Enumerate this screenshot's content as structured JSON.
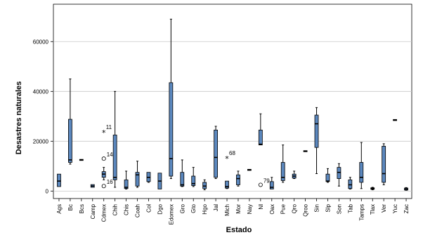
{
  "chart_data": {
    "type": "boxplot",
    "xlabel": "Estado",
    "ylabel": "Desastres naturales",
    "ylim": [
      -3000,
      75000
    ],
    "yticks": [
      0,
      20000,
      40000,
      60000
    ],
    "ytick_labels": [
      "0",
      "20000",
      "40000",
      "60000"
    ],
    "grid": "horizontal",
    "box_color": "#5b87bd",
    "categories": [
      "Ags",
      "Bc",
      "Bcs",
      "Camp",
      "Cdmex",
      "Chih",
      "Chis",
      "Coah",
      "Col",
      "Dgo",
      "Edomex",
      "Gro",
      "Gto",
      "Hgo",
      "Jal",
      "Mich",
      "Mor",
      "Nay",
      "Nl",
      "Oax",
      "Pue",
      "Qro",
      "Qroo",
      "Sin",
      "Slp",
      "Son",
      "Tab",
      "Tamps",
      "Tlax",
      "Ver",
      "Yuc",
      "Zac"
    ],
    "boxes": [
      {
        "category": "Ags",
        "min": 1800,
        "q1": 1800,
        "median": 4000,
        "q3": 6800,
        "max": 6800
      },
      {
        "category": "Bc",
        "min": 10800,
        "q1": 11500,
        "median": 12500,
        "q3": 28800,
        "max": 45000
      },
      {
        "category": "Bcs",
        "min": 12500,
        "q1": 12500,
        "median": 12500,
        "q3": 12500,
        "max": 12500
      },
      {
        "category": "Camp",
        "min": 1500,
        "q1": 1500,
        "median": 2000,
        "q3": 2600,
        "max": 2600
      },
      {
        "category": "Cdmex",
        "min": 4500,
        "q1": 5500,
        "median": 6800,
        "q3": 7800,
        "max": 9500
      },
      {
        "category": "Chih",
        "min": 1500,
        "q1": 4500,
        "median": 5500,
        "q3": 22500,
        "max": 40000
      },
      {
        "category": "Chis",
        "min": 800,
        "q1": 1000,
        "median": 1500,
        "q3": 4500,
        "max": 8000
      },
      {
        "category": "Coah",
        "min": 1500,
        "q1": 2000,
        "median": 6500,
        "q3": 7500,
        "max": 12000
      },
      {
        "category": "Col",
        "min": 3500,
        "q1": 3800,
        "median": 5500,
        "q3": 7500,
        "max": 7500
      },
      {
        "category": "Dgo",
        "min": 800,
        "q1": 800,
        "median": 4000,
        "q3": 7200,
        "max": 7200
      },
      {
        "category": "Edomex",
        "min": 5000,
        "q1": 6000,
        "median": 13000,
        "q3": 43500,
        "max": 69000
      },
      {
        "category": "Gro",
        "min": 1800,
        "q1": 2000,
        "median": 2500,
        "q3": 7500,
        "max": 12500
      },
      {
        "category": "Gto",
        "min": 1800,
        "q1": 2200,
        "median": 3000,
        "q3": 6000,
        "max": 9500
      },
      {
        "category": "Hgo",
        "min": 500,
        "q1": 1000,
        "median": 2000,
        "q3": 3500,
        "max": 4500
      },
      {
        "category": "Jal",
        "min": 5000,
        "q1": 5500,
        "median": 13500,
        "q3": 24500,
        "max": 26000
      },
      {
        "category": "Mich",
        "min": 1000,
        "q1": 1200,
        "median": 1800,
        "q3": 4000,
        "max": 4000
      },
      {
        "category": "Mor",
        "min": 2000,
        "q1": 2500,
        "median": 5000,
        "q3": 6500,
        "max": 8000
      },
      {
        "category": "Nay",
        "min": 8500,
        "q1": 8500,
        "median": 8500,
        "q3": 8500,
        "max": 8500
      },
      {
        "category": "Nl",
        "min": 18500,
        "q1": 18500,
        "median": 18800,
        "q3": 24500,
        "max": 31000
      },
      {
        "category": "Oax",
        "min": 800,
        "q1": 800,
        "median": 1500,
        "q3": 3800,
        "max": 5500
      },
      {
        "category": "Pue",
        "min": 3500,
        "q1": 4200,
        "median": 5500,
        "q3": 11500,
        "max": 18500
      },
      {
        "category": "Qro",
        "min": 5000,
        "q1": 5200,
        "median": 6000,
        "q3": 6800,
        "max": 8000
      },
      {
        "category": "Qroo",
        "min": 16000,
        "q1": 16000,
        "median": 16000,
        "q3": 16000,
        "max": 16000
      },
      {
        "category": "Sin",
        "min": 7000,
        "q1": 17500,
        "median": 27000,
        "q3": 30500,
        "max": 33500
      },
      {
        "category": "Slp",
        "min": 3500,
        "q1": 3800,
        "median": 4000,
        "q3": 6800,
        "max": 9000
      },
      {
        "category": "Son",
        "min": 2000,
        "q1": 5000,
        "median": 7500,
        "q3": 9500,
        "max": 11000
      },
      {
        "category": "Tab",
        "min": 800,
        "q1": 1000,
        "median": 2500,
        "q3": 4500,
        "max": 5500
      },
      {
        "category": "Tamps",
        "min": 1000,
        "q1": 3500,
        "median": 5500,
        "q3": 11500,
        "max": 19500
      },
      {
        "category": "Tlax",
        "min": 500,
        "q1": 700,
        "median": 1000,
        "q3": 1300,
        "max": 1500
      },
      {
        "category": "Ver",
        "min": 2500,
        "q1": 3500,
        "median": 7000,
        "q3": 18000,
        "max": 19000
      },
      {
        "category": "Yuc",
        "min": 28500,
        "q1": 28500,
        "median": 28500,
        "q3": 28500,
        "max": 28500
      },
      {
        "category": "Zac",
        "min": 300,
        "q1": 400,
        "median": 800,
        "q3": 1200,
        "max": 1400
      }
    ],
    "outliers": [
      {
        "category": "Cdmex",
        "value": 23500,
        "marker": "star",
        "label": "11"
      },
      {
        "category": "Cdmex",
        "value": 13000,
        "marker": "circle",
        "label": "14"
      },
      {
        "category": "Cdmex",
        "value": 2000,
        "marker": "circle",
        "label": "16"
      },
      {
        "category": "Mich",
        "value": 13000,
        "marker": "star",
        "label": "68"
      },
      {
        "category": "Nl",
        "value": 2500,
        "marker": "circle",
        "label": "79"
      }
    ]
  }
}
